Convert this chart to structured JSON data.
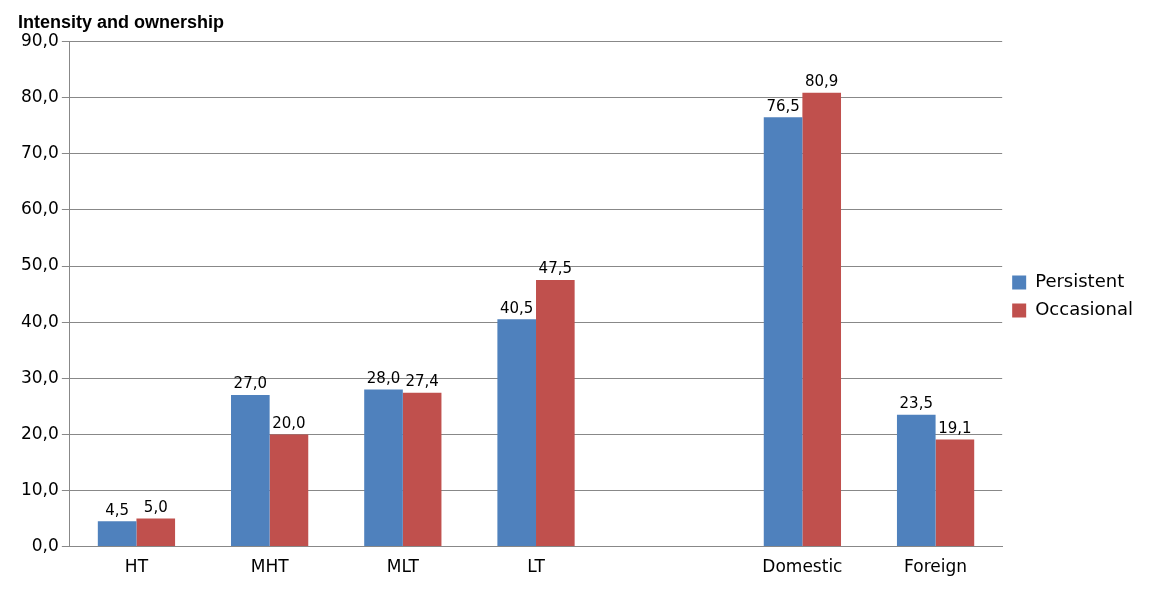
{
  "chart_data": {
    "type": "bar",
    "title": "Intensity and ownership",
    "categories": [
      "HT",
      "MHT",
      "MLT",
      "LT",
      null,
      "Domestic",
      "Foreign"
    ],
    "series": [
      {
        "name": "Persistent",
        "color": "#4f81bd",
        "values": [
          4.5,
          27.0,
          28.0,
          40.5,
          null,
          76.5,
          23.5
        ],
        "value_labels": [
          "4,5",
          "27,0",
          "28,0",
          "40,5",
          null,
          "76,5",
          "23,5"
        ]
      },
      {
        "name": "Occasional",
        "color": "#c0504d",
        "values": [
          5.0,
          20.0,
          27.4,
          47.5,
          null,
          80.9,
          19.1
        ],
        "value_labels": [
          "5,0",
          "20,0",
          "27,4",
          "47,5",
          null,
          "80,9",
          "19,1"
        ]
      }
    ],
    "ylim": [
      0,
      90
    ],
    "yticks": [
      {
        "value": 0,
        "label": "0,0"
      },
      {
        "value": 10,
        "label": "10,0"
      },
      {
        "value": 20,
        "label": "20,0"
      },
      {
        "value": 30,
        "label": "30,0"
      },
      {
        "value": 40,
        "label": "40,0"
      },
      {
        "value": 50,
        "label": "50,0"
      },
      {
        "value": 60,
        "label": "60,0"
      },
      {
        "value": 70,
        "label": "70,0"
      },
      {
        "value": 80,
        "label": "80,0"
      },
      {
        "value": 90,
        "label": "90,0"
      }
    ],
    "grid": "y",
    "legend": "right"
  }
}
